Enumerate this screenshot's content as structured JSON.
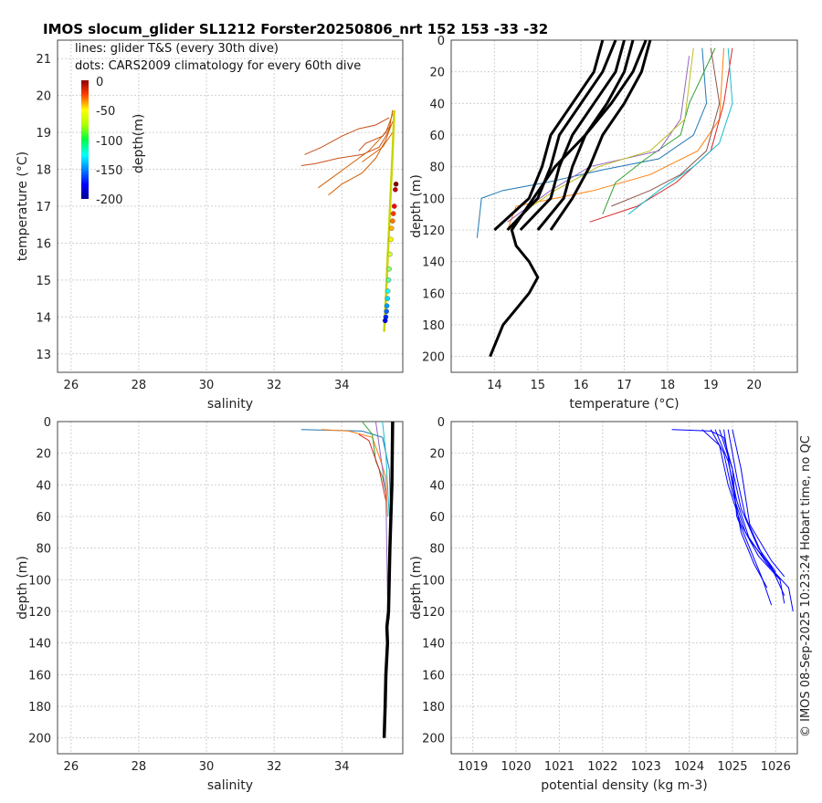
{
  "title": "IMOS slocum_glider SL1212 Forster20250806_nrt 152  153  -33  -32",
  "copyright": "© IMOS 08-Sep-2025 10:23:24 Hobart time, no QC",
  "legend": {
    "line1": "lines: glider T&S (every 30th dive)",
    "line2": "dots: CARS2009 climatology for every 60th dive",
    "colorbar_label": "depth(m)",
    "colorbar_ticks": [
      "0",
      "-50",
      "-100",
      "-150",
      "-200"
    ]
  },
  "chart_data": [
    {
      "id": "ts",
      "type": "scatter",
      "xlabel": "salinity",
      "ylabel": "temperature (°C)",
      "xlim": [
        25.6,
        35.8
      ],
      "ylim": [
        12.5,
        21.5
      ],
      "xticks": [
        "26",
        "28",
        "30",
        "32",
        "34"
      ],
      "yticks": [
        "13",
        "14",
        "15",
        "16",
        "17",
        "18",
        "19",
        "20",
        "21"
      ],
      "glider_lines": [
        [
          [
            35.5,
            19.6
          ],
          [
            35.4,
            19.1
          ],
          [
            35.3,
            18.9
          ],
          [
            35.1,
            18.6
          ],
          [
            34.6,
            18.4
          ],
          [
            33.9,
            18.3
          ],
          [
            33.2,
            18.15
          ],
          [
            32.8,
            18.1
          ]
        ],
        [
          [
            35.5,
            19.5
          ],
          [
            35.3,
            19.0
          ],
          [
            34.8,
            18.5
          ],
          [
            34.2,
            18.1
          ],
          [
            33.6,
            17.7
          ],
          [
            33.3,
            17.5
          ]
        ],
        [
          [
            35.4,
            19.4
          ],
          [
            35.0,
            19.2
          ],
          [
            34.5,
            19.1
          ],
          [
            34.0,
            18.9
          ],
          [
            33.4,
            18.6
          ],
          [
            32.9,
            18.4
          ]
        ],
        [
          [
            35.5,
            19.3
          ],
          [
            35.3,
            18.8
          ],
          [
            35.0,
            18.3
          ],
          [
            34.6,
            17.9
          ],
          [
            34.0,
            17.6
          ],
          [
            33.6,
            17.3
          ]
        ],
        [
          [
            35.45,
            19.2
          ],
          [
            35.2,
            18.9
          ],
          [
            34.7,
            18.7
          ],
          [
            34.5,
            18.5
          ]
        ],
        [
          [
            35.5,
            19.0
          ],
          [
            35.2,
            18.6
          ],
          [
            34.9,
            18.4
          ],
          [
            34.6,
            18.2
          ]
        ],
        [
          [
            35.55,
            19.6
          ],
          [
            35.5,
            18.5
          ],
          [
            35.45,
            17.5
          ],
          [
            35.4,
            16.5
          ],
          [
            35.35,
            15.5
          ],
          [
            35.3,
            14.5
          ],
          [
            35.25,
            13.6
          ]
        ]
      ],
      "cars_dots": [
        [
          35.6,
          17.6
        ],
        [
          35.58,
          17.45
        ],
        [
          35.55,
          17.0
        ],
        [
          35.52,
          16.8
        ],
        [
          35.5,
          16.6
        ],
        [
          35.47,
          16.4
        ],
        [
          35.45,
          16.1
        ],
        [
          35.42,
          15.7
        ],
        [
          35.4,
          15.3
        ],
        [
          35.38,
          15.0
        ],
        [
          35.36,
          14.7
        ],
        [
          35.35,
          14.5
        ],
        [
          35.33,
          14.3
        ],
        [
          35.32,
          14.15
        ],
        [
          35.3,
          14.0
        ],
        [
          35.28,
          13.9
        ]
      ]
    },
    {
      "id": "temp_depth",
      "type": "line",
      "xlabel": "temperature (°C)",
      "ylabel": "depth (m)",
      "xlim": [
        13.0,
        21.0
      ],
      "ylim": [
        210,
        0
      ],
      "xticks": [
        "14",
        "15",
        "16",
        "17",
        "18",
        "19",
        "20"
      ],
      "yticks": [
        "0",
        "20",
        "40",
        "60",
        "80",
        "100",
        "120",
        "140",
        "160",
        "180",
        "200"
      ],
      "climatology_profiles": [
        [
          [
            16.5,
            0
          ],
          [
            16.3,
            20
          ],
          [
            15.8,
            40
          ],
          [
            15.3,
            60
          ],
          [
            15.1,
            80
          ],
          [
            14.8,
            100
          ],
          [
            14.0,
            120
          ]
        ],
        [
          [
            16.8,
            0
          ],
          [
            16.5,
            20
          ],
          [
            16.0,
            40
          ],
          [
            15.5,
            60
          ],
          [
            15.3,
            80
          ],
          [
            15.0,
            100
          ],
          [
            14.3,
            120
          ]
        ],
        [
          [
            17.0,
            0
          ],
          [
            16.8,
            20
          ],
          [
            16.3,
            40
          ],
          [
            15.8,
            60
          ],
          [
            15.5,
            80
          ],
          [
            15.3,
            100
          ],
          [
            14.6,
            120
          ]
        ],
        [
          [
            17.2,
            0
          ],
          [
            17.0,
            20
          ],
          [
            16.6,
            40
          ],
          [
            16.1,
            60
          ],
          [
            15.8,
            80
          ],
          [
            15.6,
            100
          ],
          [
            15.0,
            120
          ]
        ],
        [
          [
            17.6,
            0
          ],
          [
            17.4,
            20
          ],
          [
            17.0,
            40
          ],
          [
            16.5,
            60
          ],
          [
            16.2,
            80
          ],
          [
            15.8,
            100
          ],
          [
            15.3,
            120
          ]
        ],
        [
          [
            17.5,
            0
          ],
          [
            17.2,
            20
          ],
          [
            16.7,
            40
          ],
          [
            16.1,
            60
          ],
          [
            15.4,
            80
          ],
          [
            14.9,
            100
          ],
          [
            14.4,
            120
          ],
          [
            14.5,
            130
          ],
          [
            14.8,
            140
          ],
          [
            15.0,
            150
          ],
          [
            14.8,
            160
          ],
          [
            14.5,
            170
          ],
          [
            14.2,
            180
          ],
          [
            13.9,
            200
          ]
        ]
      ],
      "glider_profiles": [
        [
          [
            18.8,
            5
          ],
          [
            18.9,
            40
          ],
          [
            18.6,
            60
          ],
          [
            17.8,
            75
          ],
          [
            16.5,
            82
          ],
          [
            15.2,
            90
          ],
          [
            14.2,
            95
          ],
          [
            13.7,
            100
          ],
          [
            13.6,
            125
          ]
        ],
        [
          [
            19.3,
            5
          ],
          [
            19.2,
            50
          ],
          [
            18.7,
            70
          ],
          [
            17.6,
            85
          ],
          [
            16.3,
            95
          ],
          [
            14.5,
            105
          ],
          [
            14.3,
            120
          ]
        ],
        [
          [
            19.1,
            5
          ],
          [
            18.5,
            40
          ],
          [
            18.3,
            60
          ],
          [
            17.5,
            75
          ],
          [
            16.8,
            90
          ],
          [
            16.5,
            110
          ]
        ],
        [
          [
            19.5,
            5
          ],
          [
            19.3,
            40
          ],
          [
            19.0,
            70
          ],
          [
            18.2,
            90
          ],
          [
            17.3,
            105
          ],
          [
            16.2,
            115
          ]
        ],
        [
          [
            18.5,
            10
          ],
          [
            18.3,
            50
          ],
          [
            17.8,
            70
          ],
          [
            16.2,
            80
          ],
          [
            15.3,
            95
          ],
          [
            14.3,
            115
          ]
        ],
        [
          [
            19.4,
            5
          ],
          [
            19.5,
            40
          ],
          [
            19.2,
            65
          ],
          [
            18.6,
            80
          ],
          [
            17.8,
            95
          ],
          [
            17.1,
            110
          ]
        ],
        [
          [
            18.6,
            5
          ],
          [
            18.4,
            50
          ],
          [
            17.6,
            70
          ],
          [
            16.4,
            80
          ],
          [
            15.4,
            95
          ],
          [
            14.7,
            108
          ]
        ],
        [
          [
            19.0,
            5
          ],
          [
            19.2,
            40
          ],
          [
            18.9,
            70
          ],
          [
            18.3,
            85
          ],
          [
            17.6,
            95
          ],
          [
            16.7,
            105
          ]
        ]
      ]
    },
    {
      "id": "sal_depth",
      "type": "line",
      "xlabel": "salinity",
      "ylabel": "depth (m)",
      "xlim": [
        25.6,
        35.8
      ],
      "ylim": [
        210,
        0
      ],
      "xticks": [
        "26",
        "28",
        "30",
        "32",
        "34"
      ],
      "yticks": [
        "0",
        "20",
        "40",
        "60",
        "80",
        "100",
        "120",
        "140",
        "160",
        "180",
        "200"
      ],
      "climatology_profiles": [
        [
          [
            35.5,
            0
          ],
          [
            35.48,
            40
          ],
          [
            35.42,
            80
          ],
          [
            35.38,
            120
          ],
          [
            35.33,
            130
          ],
          [
            35.35,
            140
          ],
          [
            35.3,
            160
          ],
          [
            35.28,
            180
          ],
          [
            35.25,
            200
          ]
        ]
      ],
      "glider_profiles": [
        [
          [
            32.8,
            5
          ],
          [
            33.6,
            5.5
          ],
          [
            34.6,
            6
          ],
          [
            35.2,
            10
          ],
          [
            35.4,
            30
          ],
          [
            35.45,
            60
          ],
          [
            35.4,
            125
          ]
        ],
        [
          [
            33.4,
            5
          ],
          [
            34.2,
            6
          ],
          [
            34.9,
            10
          ],
          [
            35.1,
            22
          ],
          [
            35.3,
            35
          ],
          [
            35.35,
            60
          ]
        ],
        [
          [
            34.6,
            0
          ],
          [
            34.9,
            8
          ],
          [
            35.0,
            25
          ],
          [
            35.2,
            35
          ],
          [
            35.3,
            45
          ]
        ],
        [
          [
            34.5,
            8
          ],
          [
            34.8,
            12
          ],
          [
            35.1,
            30
          ],
          [
            35.3,
            50
          ]
        ],
        [
          [
            35.0,
            0
          ],
          [
            35.1,
            15
          ],
          [
            35.2,
            30
          ],
          [
            35.3,
            45
          ],
          [
            35.35,
            110
          ]
        ],
        [
          [
            35.2,
            0
          ],
          [
            35.3,
            20
          ],
          [
            35.35,
            40
          ],
          [
            35.4,
            60
          ]
        ]
      ]
    },
    {
      "id": "dens_depth",
      "type": "line",
      "xlabel": "potential density (kg m-3)",
      "ylabel": "depth (m)",
      "xlim": [
        1018.5,
        1026.5
      ],
      "ylim": [
        210,
        0
      ],
      "xticks": [
        "1019",
        "1020",
        "1021",
        "1022",
        "1023",
        "1024",
        "1025",
        "1026"
      ],
      "yticks": [
        "0",
        "20",
        "40",
        "60",
        "80",
        "100",
        "120",
        "140",
        "160",
        "180",
        "200"
      ],
      "profiles": [
        [
          [
            1023.6,
            5
          ],
          [
            1024.5,
            6
          ],
          [
            1024.8,
            10
          ],
          [
            1025.0,
            30
          ],
          [
            1025.1,
            60
          ],
          [
            1025.4,
            80
          ],
          [
            1025.7,
            100
          ],
          [
            1025.9,
            116
          ]
        ],
        [
          [
            1024.3,
            5
          ],
          [
            1024.7,
            15
          ],
          [
            1024.9,
            40
          ],
          [
            1025.2,
            65
          ],
          [
            1025.6,
            85
          ],
          [
            1026.1,
            100
          ],
          [
            1026.2,
            115
          ]
        ],
        [
          [
            1024.5,
            5
          ],
          [
            1024.8,
            20
          ],
          [
            1025.0,
            45
          ],
          [
            1025.3,
            70
          ],
          [
            1025.8,
            90
          ],
          [
            1026.3,
            105
          ],
          [
            1026.4,
            120
          ]
        ],
        [
          [
            1024.6,
            5
          ],
          [
            1024.9,
            25
          ],
          [
            1025.1,
            50
          ],
          [
            1025.4,
            75
          ],
          [
            1025.9,
            92
          ],
          [
            1026.2,
            110
          ]
        ],
        [
          [
            1024.7,
            5
          ],
          [
            1025.0,
            30
          ],
          [
            1025.2,
            55
          ],
          [
            1025.6,
            80
          ],
          [
            1026.0,
            95
          ]
        ],
        [
          [
            1024.9,
            5
          ],
          [
            1025.1,
            35
          ],
          [
            1025.3,
            60
          ],
          [
            1025.7,
            85
          ],
          [
            1026.1,
            100
          ]
        ],
        [
          [
            1024.8,
            5
          ],
          [
            1025.0,
            40
          ],
          [
            1025.2,
            70
          ],
          [
            1025.5,
            90
          ],
          [
            1025.8,
            105
          ]
        ],
        [
          [
            1025.0,
            5
          ],
          [
            1025.2,
            30
          ],
          [
            1025.4,
            65
          ],
          [
            1025.9,
            88
          ],
          [
            1026.2,
            98
          ]
        ]
      ]
    }
  ]
}
